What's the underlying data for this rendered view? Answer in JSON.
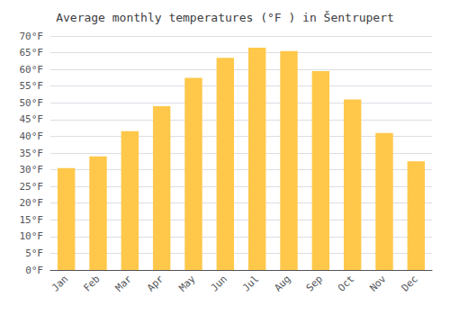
{
  "chart_data": {
    "type": "bar",
    "title": "Average monthly temperatures (°F ) in Šentrupert",
    "categories": [
      "Jan",
      "Feb",
      "Mar",
      "Apr",
      "May",
      "Jun",
      "Jul",
      "Aug",
      "Sep",
      "Oct",
      "Nov",
      "Dec"
    ],
    "values": [
      30.5,
      34.0,
      41.5,
      49.0,
      57.5,
      63.5,
      66.5,
      65.5,
      59.5,
      51.0,
      41.0,
      32.5
    ],
    "color": "#FFC84A",
    "ylim": [
      0,
      70
    ],
    "yticks": [
      {
        "value": 0,
        "label": "0°F"
      },
      {
        "value": 5,
        "label": "5°F"
      },
      {
        "value": 10,
        "label": "10°F"
      },
      {
        "value": 15,
        "label": "15°F"
      },
      {
        "value": 20,
        "label": "20°F"
      },
      {
        "value": 25,
        "label": "25°F"
      },
      {
        "value": 30,
        "label": "30°F"
      },
      {
        "value": 35,
        "label": "35°F"
      },
      {
        "value": 40,
        "label": "40°F"
      },
      {
        "value": 45,
        "label": "45°F"
      },
      {
        "value": 50,
        "label": "50°F"
      },
      {
        "value": 55,
        "label": "55°F"
      },
      {
        "value": 60,
        "label": "60°F"
      },
      {
        "value": 65,
        "label": "65°F"
      },
      {
        "value": 70,
        "label": "70°F"
      }
    ],
    "grid": true
  }
}
